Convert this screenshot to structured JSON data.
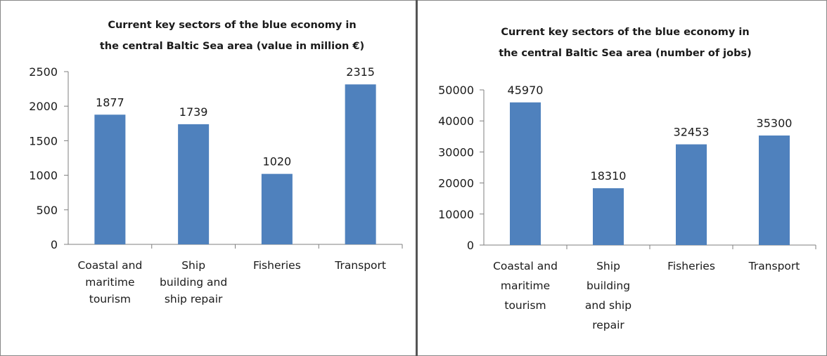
{
  "colors": {
    "bar": "#4f81bd",
    "axis": "#7f7f7f",
    "divider": "#555555"
  },
  "chart_data": [
    {
      "type": "bar",
      "title_lines": [
        "Current  key sectors of the blue  economy  in",
        "the central  Baltic Sea area (value in million €)"
      ],
      "categories": [
        "Coastal and maritime tourism",
        "Ship building and ship repair",
        "Fisheries",
        "Transport"
      ],
      "category_lines": [
        [
          "Coastal and",
          "maritime",
          "tourism"
        ],
        [
          "Ship",
          "building and",
          "ship repair"
        ],
        [
          "Fisheries"
        ],
        [
          "Transport"
        ]
      ],
      "values": [
        1877,
        1739,
        1020,
        2315
      ],
      "yticks": [
        0,
        500,
        1000,
        1500,
        2000,
        2500
      ],
      "ylim": [
        0,
        2500
      ],
      "xlabel": "",
      "ylabel": "",
      "grid": false,
      "legend": "none",
      "data_labels": true
    },
    {
      "type": "bar",
      "title_lines": [
        "Current  key sectors of the blue  economy  in",
        "the central  Baltic Sea area (number of jobs)"
      ],
      "categories": [
        "Coastal and maritime tourism",
        "Ship building and ship repair",
        "Fisheries",
        "Transport"
      ],
      "category_lines": [
        [
          "Coastal and",
          "maritime",
          "tourism"
        ],
        [
          "Ship",
          "building",
          "and ship",
          "repair"
        ],
        [
          "Fisheries"
        ],
        [
          "Transport"
        ]
      ],
      "values": [
        45970,
        18310,
        32453,
        35300
      ],
      "yticks": [
        0,
        10000,
        20000,
        30000,
        40000,
        50000
      ],
      "ylim": [
        0,
        50000
      ],
      "xlabel": "",
      "ylabel": "",
      "grid": false,
      "legend": "none",
      "data_labels": true
    }
  ]
}
